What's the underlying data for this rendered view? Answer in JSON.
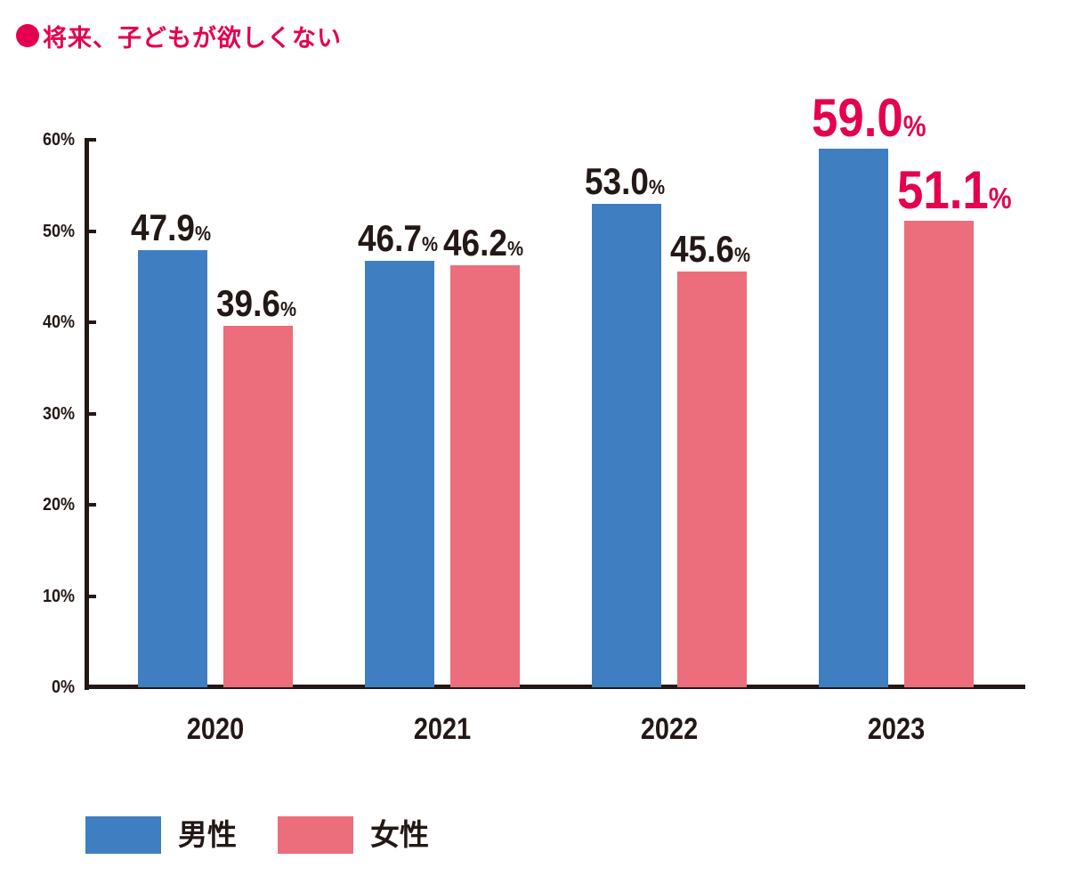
{
  "title": "将来、子どもが欲しくない",
  "colors": {
    "male": "#3f7ec1",
    "female": "#ec6d7b",
    "highlight": "#e4004f",
    "axis": "#231815"
  },
  "y_axis": {
    "ticks": [
      "0%",
      "10%",
      "20%",
      "30%",
      "40%",
      "50%",
      "60%"
    ]
  },
  "x_axis": {
    "categories": [
      "2020",
      "2021",
      "2022",
      "2023"
    ]
  },
  "legend": [
    {
      "label": "男性",
      "color": "#3f7ec1"
    },
    {
      "label": "女性",
      "color": "#ec6d7b"
    }
  ],
  "labels": {
    "male": [
      "47.9",
      "46.7",
      "53.0",
      "59.0"
    ],
    "female": [
      "39.6",
      "46.2",
      "45.6",
      "51.1"
    ],
    "pct": "%"
  },
  "chart_data": {
    "type": "bar",
    "title": "将来、子どもが欲しくない",
    "categories": [
      "2020",
      "2021",
      "2022",
      "2023"
    ],
    "series": [
      {
        "name": "男性",
        "values": [
          47.9,
          46.7,
          53.0,
          59.0
        ],
        "color": "#3f7ec1"
      },
      {
        "name": "女性",
        "values": [
          39.6,
          46.2,
          45.6,
          51.1
        ],
        "color": "#ec6d7b"
      }
    ],
    "xlabel": "",
    "ylabel": "",
    "ylim": [
      0,
      60
    ],
    "yticks": [
      "0%",
      "10%",
      "20%",
      "30%",
      "40%",
      "50%",
      "60%"
    ],
    "grid": false,
    "legend_position": "bottom-left",
    "annotations": "2023 values highlighted in red, larger font"
  }
}
